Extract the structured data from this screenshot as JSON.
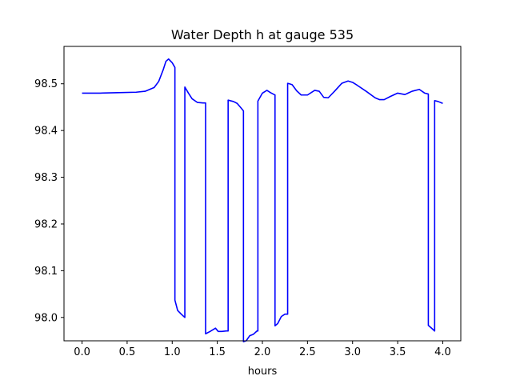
{
  "chart_data": {
    "type": "line",
    "title": "Water Depth h at gauge 535",
    "xlabel": "hours",
    "ylabel": "",
    "xlim": [
      -0.2,
      4.2
    ],
    "ylim": [
      97.95,
      98.58
    ],
    "xticks": [
      0.0,
      0.5,
      1.0,
      1.5,
      2.0,
      2.5,
      3.0,
      3.5,
      4.0
    ],
    "xtick_labels": [
      "0.0",
      "0.5",
      "1.0",
      "1.5",
      "2.0",
      "2.5",
      "3.0",
      "3.5",
      "4.0"
    ],
    "yticks": [
      98.0,
      98.1,
      98.2,
      98.3,
      98.4,
      98.5
    ],
    "ytick_labels": [
      "98.0",
      "98.1",
      "98.2",
      "98.3",
      "98.4",
      "98.5"
    ],
    "grid": false,
    "line_color": "#0000ff",
    "series": [
      {
        "x": [
          0.0,
          0.2,
          0.4,
          0.6,
          0.7,
          0.8,
          0.85,
          0.9,
          0.93,
          0.96,
          1.0,
          1.03,
          1.03,
          1.06,
          1.1,
          1.14,
          1.14,
          1.18,
          1.22,
          1.28,
          1.34,
          1.37,
          1.37,
          1.42,
          1.48,
          1.51,
          1.55,
          1.6,
          1.62,
          1.62,
          1.68,
          1.72,
          1.76,
          1.79,
          1.79,
          1.82,
          1.86,
          1.9,
          1.94,
          1.95,
          1.95,
          2.0,
          2.05,
          2.09,
          2.13,
          2.14,
          2.14,
          2.17,
          2.21,
          2.25,
          2.28,
          2.28,
          2.3,
          2.33,
          2.38,
          2.43,
          2.5,
          2.58,
          2.63,
          2.68,
          2.73,
          2.8,
          2.88,
          2.95,
          3.0,
          3.05,
          3.15,
          3.25,
          3.3,
          3.35,
          3.42,
          3.5,
          3.58,
          3.66,
          3.74,
          3.8,
          3.84,
          3.84,
          3.87,
          3.91,
          3.91,
          3.95,
          4.0
        ],
        "y": [
          98.48,
          98.48,
          98.481,
          98.482,
          98.484,
          98.492,
          98.505,
          98.53,
          98.548,
          98.553,
          98.545,
          98.535,
          98.037,
          98.015,
          98.007,
          98.0,
          98.493,
          98.48,
          98.468,
          98.46,
          98.459,
          98.459,
          97.965,
          97.97,
          97.977,
          97.97,
          97.97,
          97.971,
          97.971,
          98.465,
          98.462,
          98.458,
          98.449,
          98.442,
          97.948,
          97.95,
          97.961,
          97.964,
          97.971,
          97.971,
          98.463,
          98.48,
          98.486,
          98.481,
          98.477,
          98.476,
          97.982,
          97.987,
          98.002,
          98.007,
          98.007,
          98.501,
          98.5,
          98.498,
          98.485,
          98.476,
          98.476,
          98.486,
          98.484,
          98.471,
          98.47,
          98.484,
          98.501,
          98.506,
          98.503,
          98.497,
          98.484,
          98.47,
          98.466,
          98.466,
          98.473,
          98.48,
          98.477,
          98.484,
          98.488,
          98.48,
          98.478,
          97.983,
          97.978,
          97.971,
          98.464,
          98.462,
          98.458
        ]
      }
    ]
  }
}
